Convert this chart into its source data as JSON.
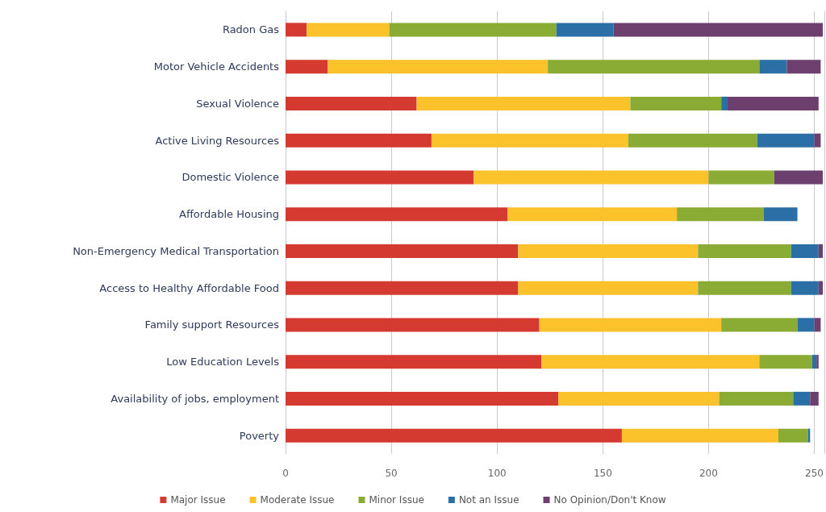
{
  "chart_data": {
    "type": "bar",
    "orientation": "horizontal",
    "stacked": true,
    "categories": [
      "Radon Gas",
      "Motor Vehicle Accidents",
      "Sexual Violence",
      "Active Living Resources",
      "Domestic Violence",
      "Affordable Housing",
      "Non-Emergency Medical Transportation",
      "Access to Healthy Affordable Food",
      "Family support Resources",
      "Low Education Levels",
      "Availability of jobs, employment",
      "Poverty"
    ],
    "series": [
      {
        "name": "Major Issue",
        "color": "#d43a2f",
        "values": [
          10,
          20,
          62,
          69,
          89,
          105,
          110,
          110,
          120,
          121,
          129,
          159
        ]
      },
      {
        "name": "Moderate Issue",
        "color": "#fcc22c",
        "values": [
          39,
          104,
          101,
          93,
          111,
          80,
          85,
          85,
          86,
          103,
          76,
          74
        ]
      },
      {
        "name": "Minor Issue",
        "color": "#8aab34",
        "values": [
          79,
          100,
          43,
          61,
          31,
          41,
          44,
          44,
          36,
          25,
          35,
          14
        ]
      },
      {
        "name": "Not an Issue",
        "color": "#2a70a6",
        "values": [
          27,
          13,
          3,
          27,
          0,
          16,
          13,
          13,
          8,
          2,
          8,
          1
        ]
      },
      {
        "name": "No Opinion/Don't Know",
        "color": "#6c3f6e",
        "values": [
          99,
          16,
          43,
          3,
          23,
          0,
          2,
          2,
          3,
          1,
          4,
          0
        ]
      }
    ],
    "xlim": [
      0,
      255
    ],
    "xticks": [
      0,
      50,
      100,
      150,
      200,
      250
    ],
    "grid": "x",
    "legend": "bottom"
  }
}
